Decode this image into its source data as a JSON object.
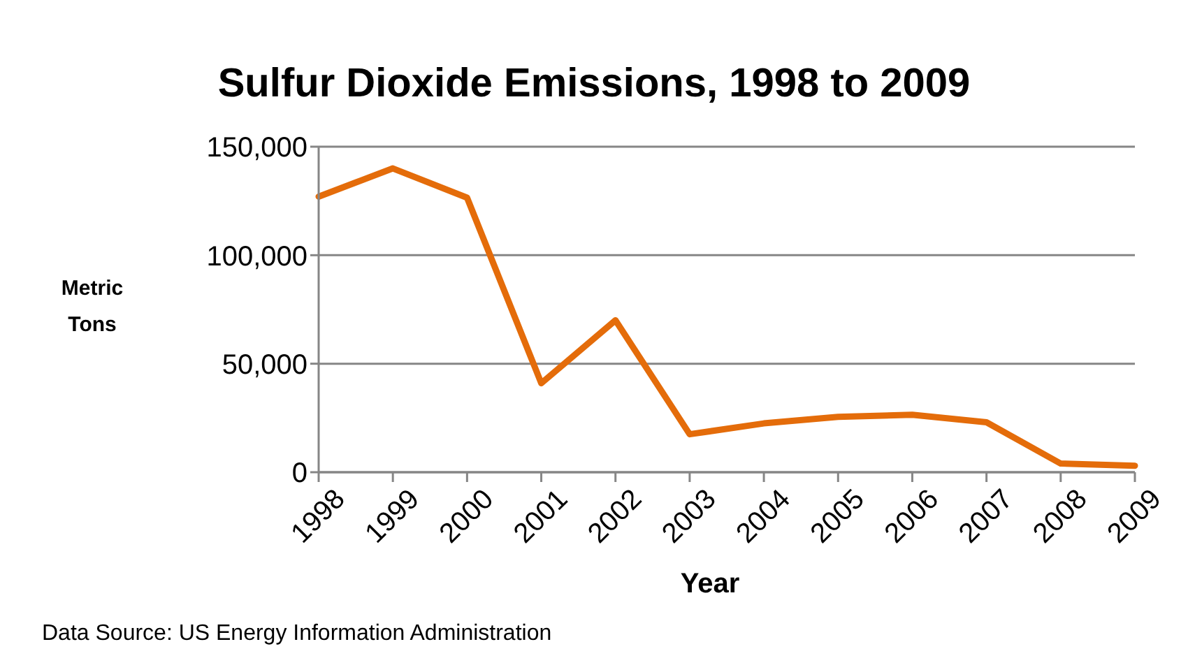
{
  "chart_data": {
    "type": "line",
    "title": "Sulfur Dioxide Emissions, 1998 to 2009",
    "xlabel": "Year",
    "ylabel": "Metric Tons",
    "categories": [
      "1998",
      "1999",
      "2000",
      "2001",
      "2002",
      "2003",
      "2004",
      "2005",
      "2006",
      "2007",
      "2008",
      "2009"
    ],
    "series": [
      {
        "color": "#e46c0a",
        "values": [
          127000,
          140000,
          126500,
          41000,
          70000,
          17500,
          22500,
          25500,
          26500,
          23000,
          4000,
          3000
        ]
      }
    ],
    "ylim": [
      0,
      150000
    ],
    "yticks": [
      {
        "value": 0,
        "label": "0"
      },
      {
        "value": 50000,
        "label": "50,000"
      },
      {
        "value": 100000,
        "label": "100,000"
      },
      {
        "value": 150000,
        "label": "150,000"
      }
    ],
    "grid": "y",
    "legend": false,
    "marker": "none",
    "line_style": "solid",
    "annotations": [
      "Data Source: US Energy Information Administration"
    ]
  }
}
